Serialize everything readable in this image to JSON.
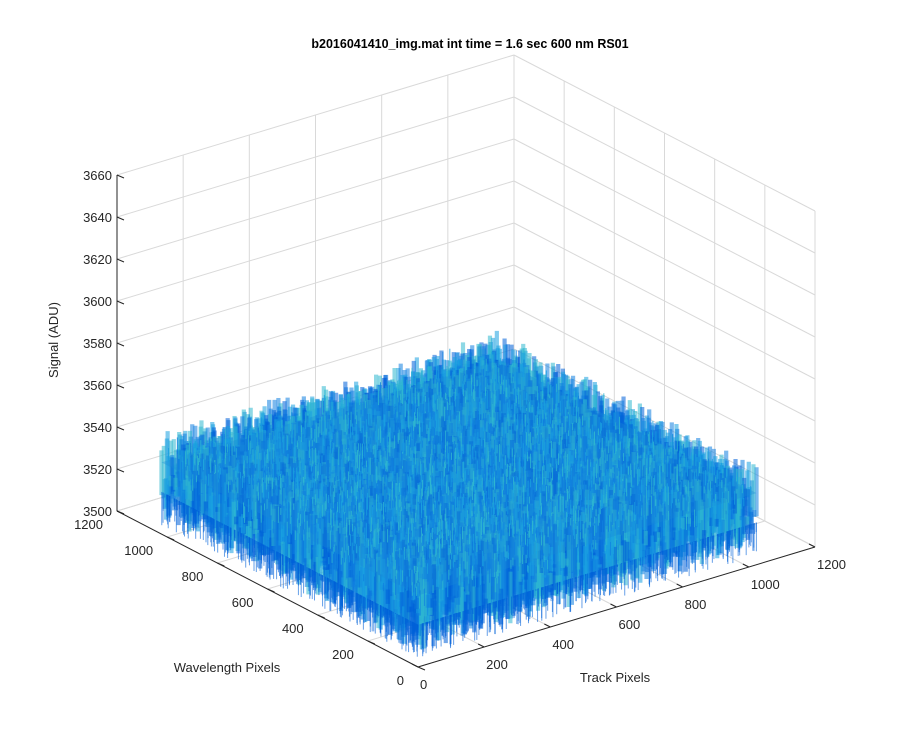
{
  "chart_data": {
    "type": "surface",
    "title": "b2016041410_img.mat int time = 1.6 sec  600 nm RS01",
    "xlabel": "Track Pixels",
    "ylabel": "Wavelength Pixels",
    "zlabel": "Signal (ADU)",
    "xlim": [
      0,
      1200
    ],
    "ylim": [
      0,
      1200
    ],
    "zlim": [
      3500,
      3660
    ],
    "x_ticks": [
      "0",
      "200",
      "400",
      "600",
      "800",
      "1000",
      "1200"
    ],
    "y_ticks": [
      "0",
      "200",
      "400",
      "600",
      "800",
      "1000",
      "1200"
    ],
    "z_ticks": [
      "3500",
      "3520",
      "3540",
      "3560",
      "3580",
      "3600",
      "3620",
      "3640",
      "3660"
    ],
    "surface": {
      "x_extent": [
        1,
        1024
      ],
      "y_extent": [
        1,
        1024
      ],
      "mean_signal": 3530,
      "noise_range": [
        3512,
        3552
      ],
      "colormap": [
        "#0060d8",
        "#1080e0",
        "#1aa0e0",
        "#30b8d0"
      ]
    },
    "grid": true
  }
}
